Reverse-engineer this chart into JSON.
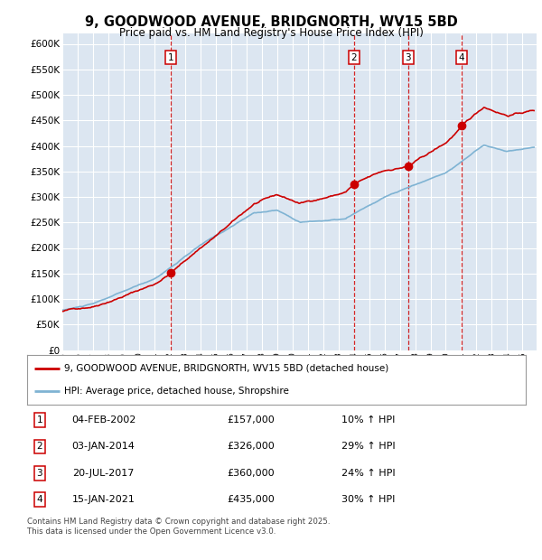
{
  "title": "9, GOODWOOD AVENUE, BRIDGNORTH, WV15 5BD",
  "subtitle": "Price paid vs. HM Land Registry's House Price Index (HPI)",
  "bg_color": "#dce6f1",
  "red_line_label": "9, GOODWOOD AVENUE, BRIDGNORTH, WV15 5BD (detached house)",
  "blue_line_label": "HPI: Average price, detached house, Shropshire",
  "ylim": [
    0,
    620000
  ],
  "yticks": [
    0,
    50000,
    100000,
    150000,
    200000,
    250000,
    300000,
    350000,
    400000,
    450000,
    500000,
    550000,
    600000
  ],
  "xlim_start": 1995.0,
  "xlim_end": 2025.92,
  "transactions": [
    {
      "num": 1,
      "date": "04-FEB-2002",
      "price": 157000,
      "hpi_pct": "10%",
      "year": 2002.09
    },
    {
      "num": 2,
      "date": "03-JAN-2014",
      "price": 326000,
      "hpi_pct": "29%",
      "year": 2014.01
    },
    {
      "num": 3,
      "date": "20-JUL-2017",
      "price": 360000,
      "hpi_pct": "24%",
      "year": 2017.55
    },
    {
      "num": 4,
      "date": "15-JAN-2021",
      "price": 435000,
      "hpi_pct": "30%",
      "year": 2021.04
    }
  ],
  "footer": "Contains HM Land Registry data © Crown copyright and database right 2025.\nThis data is licensed under the Open Government Licence v3.0.",
  "hpi_color": "#7fb3d3",
  "price_color": "#cc0000",
  "vline_color": "#cc0000",
  "grid_color": "#ffffff",
  "marker_box_color": "#cc0000",
  "dot_color": "#cc0000"
}
